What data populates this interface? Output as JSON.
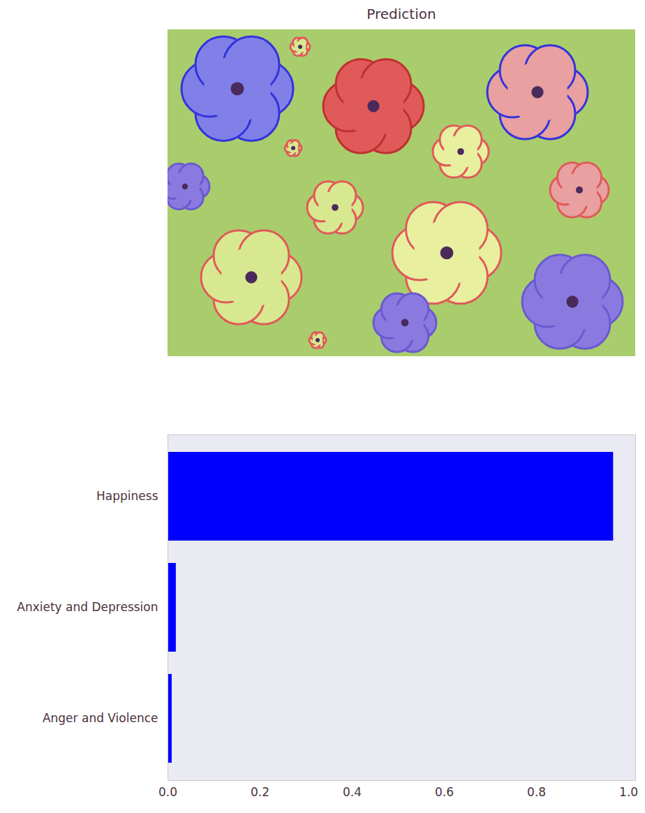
{
  "chart_data": {
    "type": "bar",
    "title": "Prediction",
    "orientation": "horizontal",
    "categories": [
      "Happiness",
      "Anxiety and Depression",
      "Anger and Violence"
    ],
    "values": [
      0.967,
      0.018,
      0.009
    ],
    "color": "#0000ff",
    "xlim": [
      0,
      1.015
    ],
    "xticks": [
      {
        "value": 0,
        "label": "0.0"
      },
      0.2,
      0.4,
      0.6,
      0.8,
      {
        "value": 1,
        "label": "1.0"
      }
    ],
    "grid": false
  }
}
